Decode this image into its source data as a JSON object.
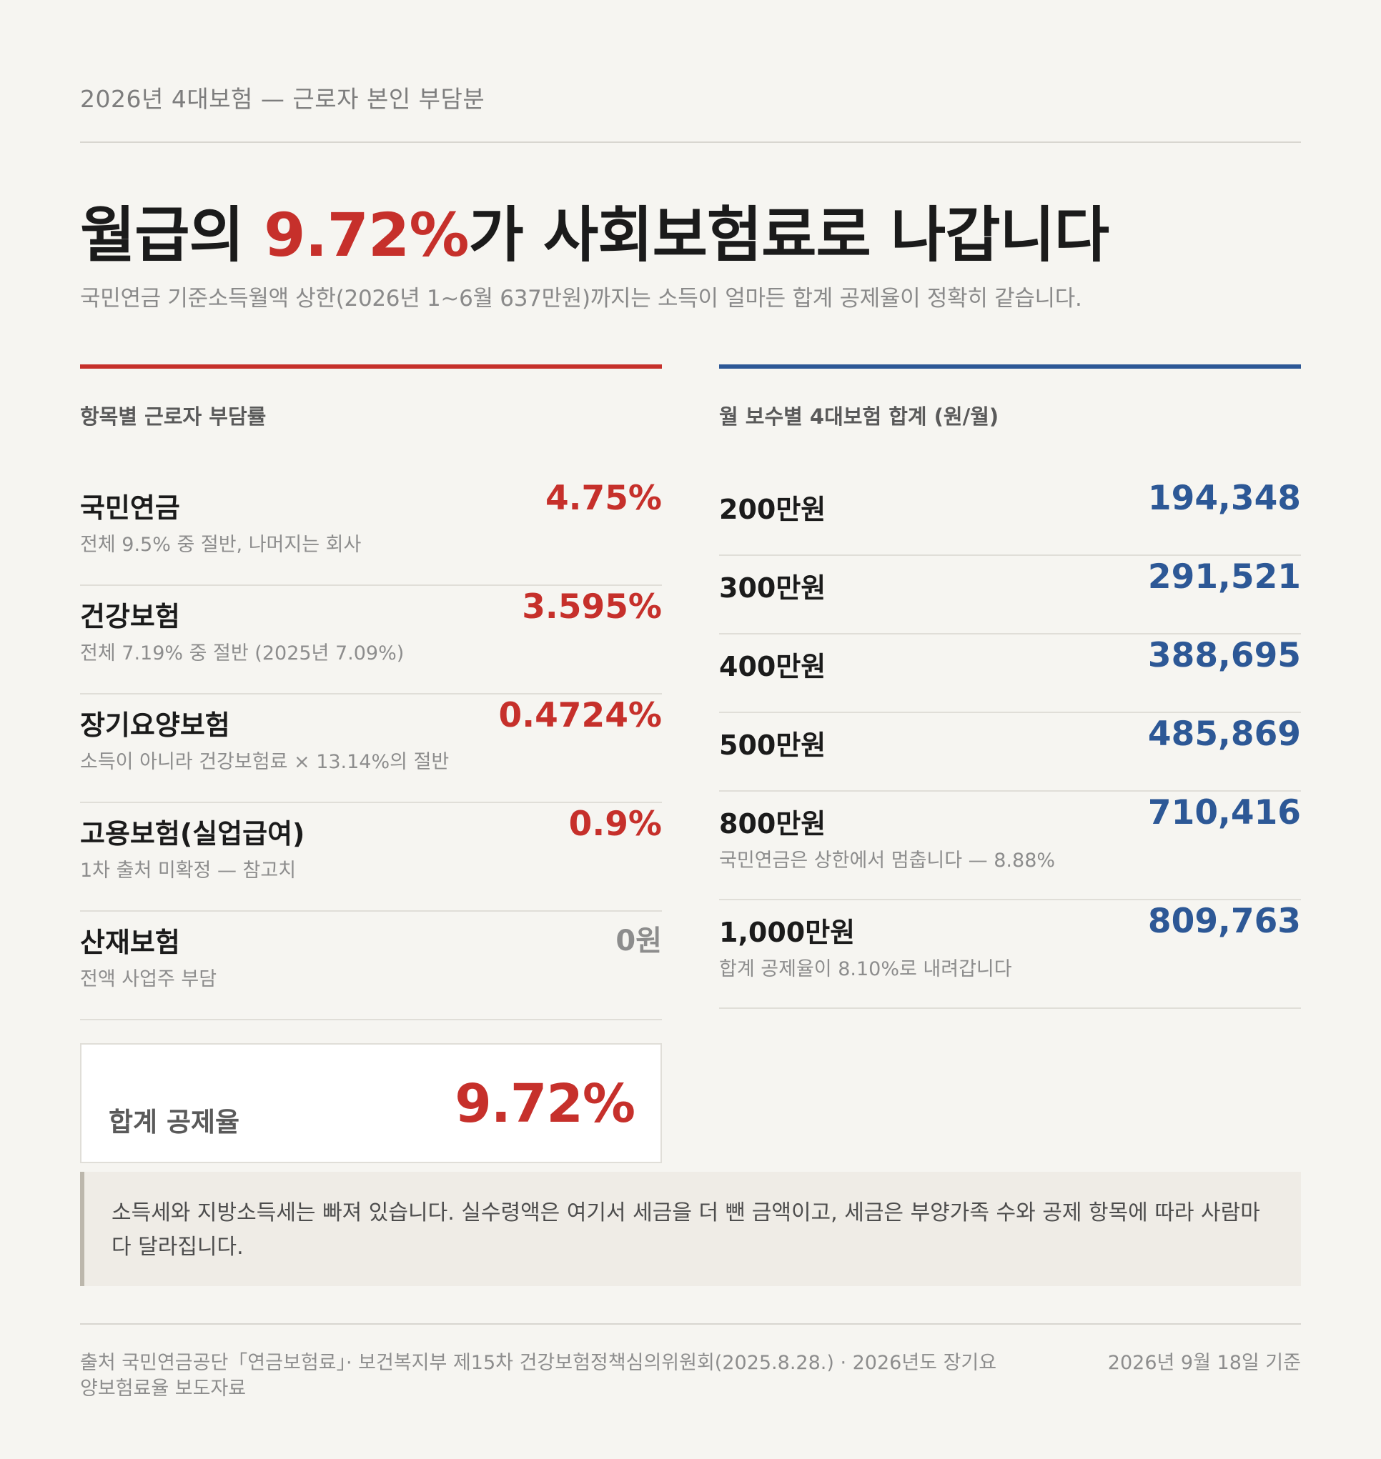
{
  "header": {
    "kicker": "2026년 4대보험 — 근로자 본인 부담분",
    "headline_before": "월급의 ",
    "headline_accent": "9.72%",
    "headline_after": "가 사회보험료로 나갑니다",
    "subtitle": "국민연금 기준소득월액 상한(2026년 1~6월 637만원)까지는 소득이 얼마든 합계 공제율이 정확히 같습니다."
  },
  "rates": {
    "title": "항목별 근로자 부담률",
    "items": [
      {
        "name": "국민연금",
        "note": "전체 9.5% 중 절반, 나머지는 회사",
        "value": "4.75%"
      },
      {
        "name": "건강보험",
        "note": "전체 7.19% 중 절반 (2025년 7.09%)",
        "value": "3.595%"
      },
      {
        "name": "장기요양보험",
        "note": "소득이 아니라 건강보험료 × 13.14%의 절반",
        "value": "0.4724%"
      },
      {
        "name": "고용보험(실업급여)",
        "note": "1차 출처 미확정 — 참고치",
        "value": "0.9%"
      },
      {
        "name": "산재보험",
        "note": "전액 사업주 부담",
        "value": "0원"
      }
    ],
    "total_label": "합계 공제율",
    "total_value": "9.72%"
  },
  "salaries": {
    "title": "월 보수별 4대보험 합계 (원/월)",
    "items": [
      {
        "amount": "200만원",
        "value": "194,348",
        "note": ""
      },
      {
        "amount": "300만원",
        "value": "291,521",
        "note": ""
      },
      {
        "amount": "400만원",
        "value": "388,695",
        "note": ""
      },
      {
        "amount": "500만원",
        "value": "485,869",
        "note": ""
      },
      {
        "amount": "800만원",
        "value": "710,416",
        "note": "국민연금은 상한에서 멈춥니다 — 8.88%"
      },
      {
        "amount": "1,000만원",
        "value": "809,763",
        "note": "합계 공제율이 8.10%로 내려갑니다"
      }
    ]
  },
  "callout": "소득세와 지방소득세는 빠져 있습니다. 실수령액은 여기서 세금을 더 뺀 금액이고, 세금은 부양가족 수와 공제 항목에 따라 사람마다 달라집니다.",
  "footer": {
    "source": "출처 국민연금공단「연금보험료」· 보건복지부 제15차 건강보험정책심의위원회(2025.8.28.) · 2026년도 장기요양보험료율 보도자료",
    "as_of": "2026년 9월 18일 기준"
  },
  "colors": {
    "accent_red": "#c6302b",
    "accent_blue": "#2d5896",
    "background": "#f6f5f1"
  }
}
